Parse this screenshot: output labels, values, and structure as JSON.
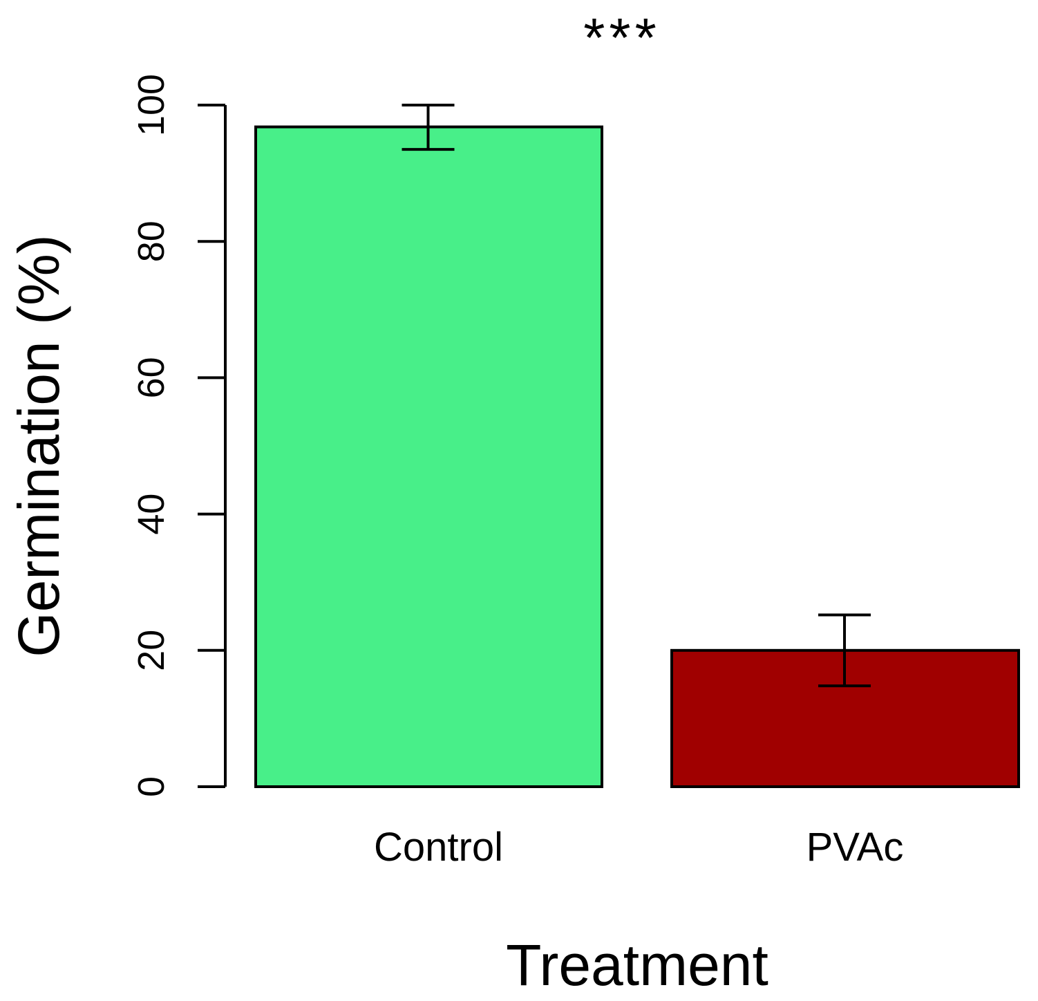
{
  "chart_data": {
    "type": "bar",
    "title": "",
    "xlabel": "Treatment",
    "ylabel": "Germination (%)",
    "ylim": [
      0,
      100
    ],
    "yticks": [
      "0",
      "20",
      "40",
      "60",
      "80",
      "100"
    ],
    "categories": [
      "Control",
      "PVAc"
    ],
    "values": [
      96.8,
      20.0
    ],
    "error_bars": [
      {
        "low": 93.5,
        "high": 100.0
      },
      {
        "low": 14.8,
        "high": 25.2
      }
    ],
    "colors": [
      "#48ef89",
      "#a00000"
    ],
    "annotation": "***",
    "grid": false,
    "legend": "none"
  }
}
